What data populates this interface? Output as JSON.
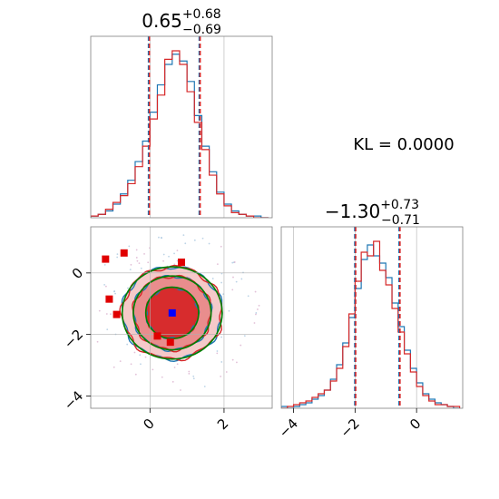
{
  "chart_data": [
    {
      "type": "histogram",
      "panel": "top-left",
      "title_value": "0.65",
      "title_sup": "+0.68",
      "title_sub": "−0.69",
      "xlim": [
        -1.6,
        3.3
      ],
      "grid": true,
      "colors": {
        "series_a": "#1f77b4",
        "series_b": "#d62728"
      },
      "quantiles": [
        -0.04,
        0.65,
        1.33
      ],
      "series_a": {
        "x": [
          -1.5,
          -1.3,
          -1.1,
          -0.9,
          -0.7,
          -0.5,
          -0.3,
          -0.1,
          0.1,
          0.3,
          0.5,
          0.7,
          0.9,
          1.1,
          1.3,
          1.5,
          1.7,
          1.9,
          2.1,
          2.3,
          2.5,
          2.7,
          2.9,
          3.1
        ],
        "values": [
          0.01,
          0.02,
          0.04,
          0.08,
          0.14,
          0.22,
          0.33,
          0.45,
          0.62,
          0.78,
          0.9,
          0.96,
          0.92,
          0.8,
          0.6,
          0.42,
          0.27,
          0.15,
          0.08,
          0.04,
          0.02,
          0.01,
          0.01,
          0.0
        ]
      },
      "series_b": {
        "x": [
          -1.5,
          -1.3,
          -1.1,
          -0.9,
          -0.7,
          -0.5,
          -0.3,
          -0.1,
          0.1,
          0.3,
          0.5,
          0.7,
          0.9,
          1.1,
          1.3,
          1.5,
          1.7,
          1.9,
          2.1,
          2.3,
          2.5,
          2.7,
          2.9,
          3.1
        ],
        "values": [
          0.01,
          0.02,
          0.05,
          0.09,
          0.13,
          0.2,
          0.3,
          0.42,
          0.58,
          0.72,
          0.93,
          0.98,
          0.9,
          0.74,
          0.56,
          0.4,
          0.25,
          0.14,
          0.07,
          0.03,
          0.02,
          0.01,
          0.0,
          0.0
        ]
      }
    },
    {
      "type": "contour",
      "panel": "bottom-left",
      "xlim": [
        -1.6,
        3.3
      ],
      "ylim": [
        -4.4,
        1.5
      ],
      "xticks": [
        "0",
        "2"
      ],
      "xtick_values": [
        0,
        2
      ],
      "yticks": [
        "0",
        "−2",
        "−4"
      ],
      "ytick_values": [
        0,
        -2,
        -4
      ],
      "grid": true,
      "center": [
        0.6,
        -1.3
      ],
      "contour_rx": [
        0.7,
        1.05,
        1.35
      ],
      "contour_ry": [
        0.82,
        1.2,
        1.5
      ],
      "fill_colors": [
        "#d62728",
        "#e88a8a",
        "#f4c6c6"
      ],
      "contour_colors": {
        "blue": "#1f77b4",
        "red": "#d62728",
        "green": "#008000"
      },
      "markers": {
        "blue": [
          {
            "x": 0.6,
            "y": -1.3
          }
        ],
        "red": [
          {
            "x": -1.2,
            "y": 0.45
          },
          {
            "x": -0.7,
            "y": 0.65
          },
          {
            "x": 0.85,
            "y": 0.35
          },
          {
            "x": -1.1,
            "y": -0.85
          },
          {
            "x": -0.9,
            "y": -1.35
          },
          {
            "x": 0.2,
            "y": -2.05
          },
          {
            "x": 0.55,
            "y": -2.25
          }
        ]
      }
    },
    {
      "type": "histogram",
      "panel": "bottom-right",
      "title_value": "−1.30",
      "title_sup": "+0.73",
      "title_sub": "−0.71",
      "xlim": [
        -4.4,
        1.5
      ],
      "xticks": [
        "−4",
        "−2",
        "0"
      ],
      "xtick_values": [
        -4,
        -2,
        0
      ],
      "grid": true,
      "colors": {
        "series_a": "#1f77b4",
        "series_b": "#d62728"
      },
      "quantiles": [
        -2.01,
        -1.3,
        -0.57
      ],
      "series_a": {
        "x": [
          -4.3,
          -4.1,
          -3.9,
          -3.7,
          -3.5,
          -3.3,
          -3.1,
          -2.9,
          -2.7,
          -2.5,
          -2.3,
          -2.1,
          -1.9,
          -1.7,
          -1.5,
          -1.3,
          -1.1,
          -0.9,
          -0.7,
          -0.5,
          -0.3,
          -0.1,
          0.1,
          0.3,
          0.5,
          0.7,
          0.9,
          1.1,
          1.3
        ],
        "values": [
          0.01,
          0.0,
          0.01,
          0.02,
          0.03,
          0.05,
          0.07,
          0.1,
          0.16,
          0.24,
          0.36,
          0.5,
          0.66,
          0.82,
          0.9,
          0.84,
          0.8,
          0.72,
          0.58,
          0.45,
          0.32,
          0.22,
          0.14,
          0.08,
          0.05,
          0.03,
          0.02,
          0.01,
          0.0
        ]
      },
      "series_b": {
        "x": [
          -4.3,
          -4.1,
          -3.9,
          -3.7,
          -3.5,
          -3.3,
          -3.1,
          -2.9,
          -2.7,
          -2.5,
          -2.3,
          -2.1,
          -1.9,
          -1.7,
          -1.5,
          -1.3,
          -1.1,
          -0.9,
          -0.7,
          -0.5,
          -0.3,
          -0.1,
          0.1,
          0.3,
          0.5,
          0.7,
          0.9,
          1.1,
          1.3
        ],
        "values": [
          0.0,
          0.01,
          0.02,
          0.03,
          0.04,
          0.06,
          0.08,
          0.1,
          0.15,
          0.22,
          0.34,
          0.52,
          0.7,
          0.86,
          0.84,
          0.92,
          0.76,
          0.68,
          0.55,
          0.42,
          0.3,
          0.2,
          0.12,
          0.07,
          0.04,
          0.02,
          0.02,
          0.01,
          0.01
        ]
      }
    }
  ],
  "annotation": "KL = 0.0000"
}
